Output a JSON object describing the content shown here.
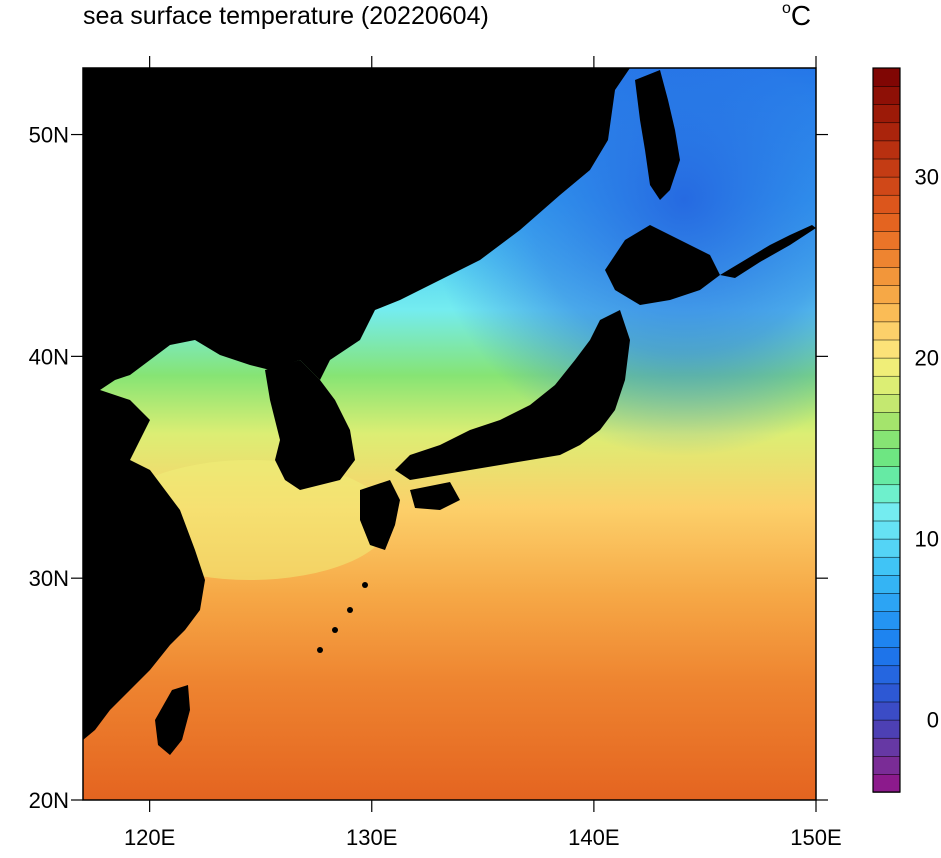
{
  "title": "sea surface temperature (20220604)",
  "unit": {
    "degree_symbol": "o",
    "letter": "C"
  },
  "map": {
    "lon_range": [
      117,
      150
    ],
    "lat_range": [
      20,
      53
    ],
    "lon_ticks": [
      {
        "value": 120,
        "label": "120E"
      },
      {
        "value": 130,
        "label": "130E"
      },
      {
        "value": 140,
        "label": "140E"
      },
      {
        "value": 150,
        "label": "150E"
      }
    ],
    "lat_ticks": [
      {
        "value": 50,
        "label": "50N"
      },
      {
        "value": 40,
        "label": "40N"
      },
      {
        "value": 30,
        "label": "30N"
      },
      {
        "value": 20,
        "label": "20N"
      }
    ],
    "land_color": "#000000"
  },
  "colorbar": {
    "min": -4,
    "max": 36,
    "step": 1,
    "labels": [
      {
        "value": 0,
        "label": "0"
      },
      {
        "value": 10,
        "label": "10"
      },
      {
        "value": 20,
        "label": "20"
      },
      {
        "value": 30,
        "label": "30"
      }
    ],
    "colors": [
      "#8c1a8c",
      "#7a2c96",
      "#6638a4",
      "#4d40b4",
      "#3b4cc6",
      "#2d58d4",
      "#2566e0",
      "#1e74ea",
      "#1e84f0",
      "#2494f2",
      "#2ca4f4",
      "#34b4f4",
      "#40c4f6",
      "#54d4f6",
      "#66e2f4",
      "#74ecf0",
      "#6ef0cc",
      "#66eaa4",
      "#6ee682",
      "#86e474",
      "#a4e46c",
      "#c4e870",
      "#dcee74",
      "#f0ee78",
      "#fce278",
      "#fcd06a",
      "#fabc56",
      "#f6a846",
      "#f2963a",
      "#ee8430",
      "#ea7428",
      "#e46420",
      "#dc561c",
      "#d04818",
      "#c43c14",
      "#b83010",
      "#aa240c",
      "#9c1a08",
      "#8e1006",
      "#800604"
    ]
  }
}
